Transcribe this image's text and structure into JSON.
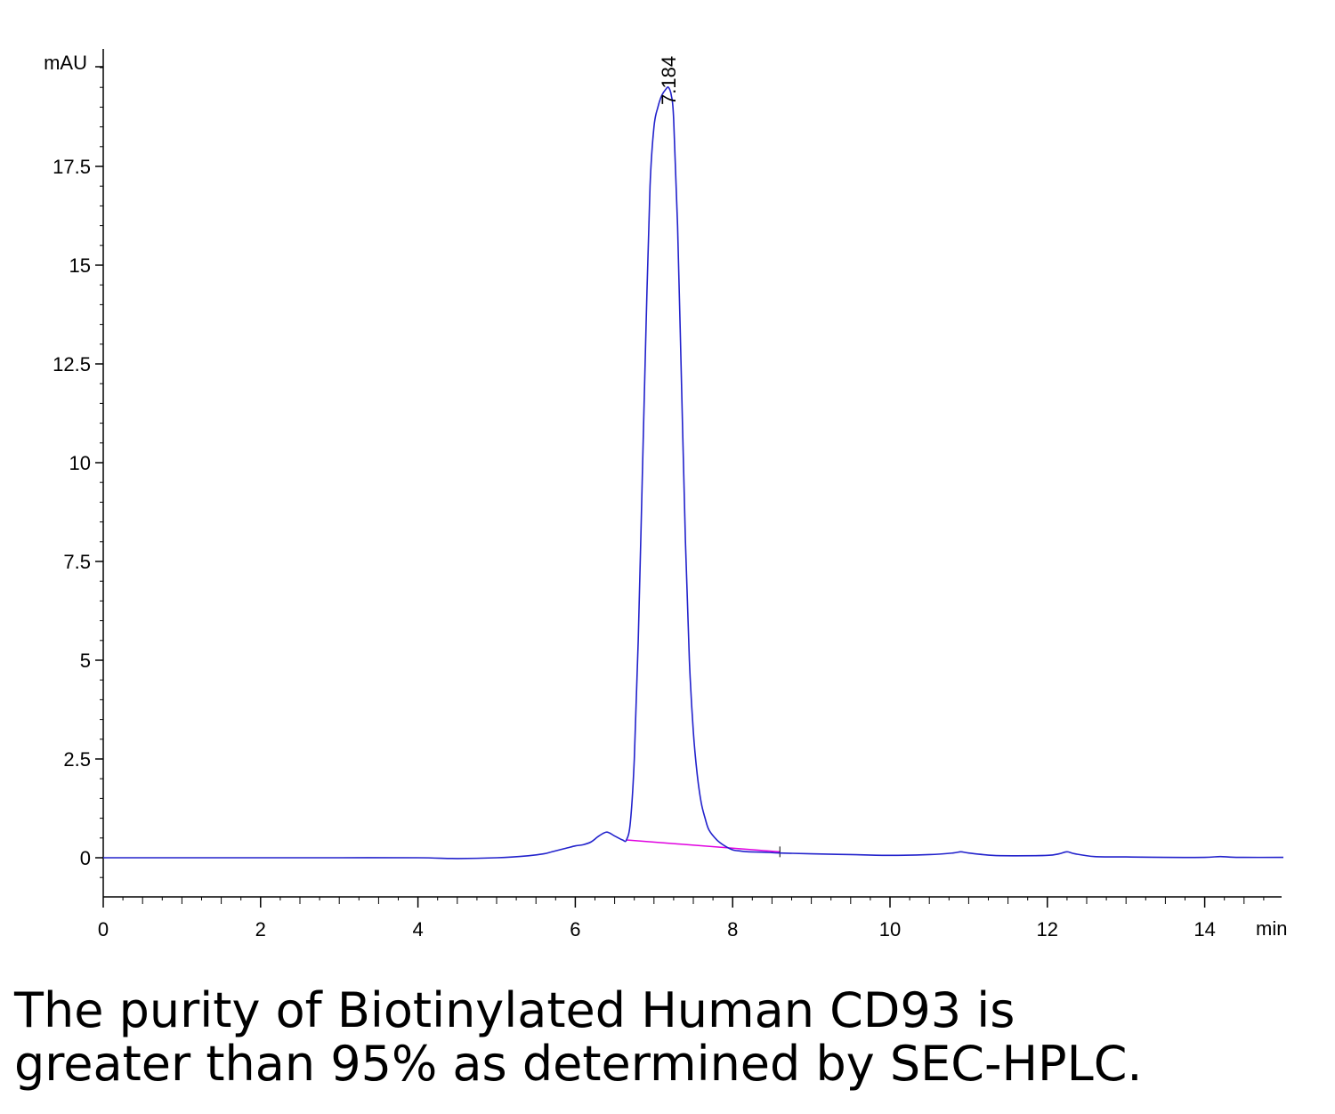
{
  "chart_data": {
    "type": "line",
    "title": "",
    "ylabel": "mAU",
    "xlabel": "min",
    "xlim": [
      0,
      15
    ],
    "ylim": [
      -2,
      20.5
    ],
    "x_ticks": [
      0,
      2,
      4,
      6,
      8,
      10,
      12,
      14
    ],
    "y_ticks": [
      0,
      2.5,
      5,
      7.5,
      10,
      12.5,
      15,
      17.5
    ],
    "x_tick_labels": [
      "0",
      "2",
      "4",
      "6",
      "8",
      "10",
      "12",
      "14"
    ],
    "y_tick_labels": [
      "0",
      "2.5",
      "5",
      "7.5",
      "10",
      "12.5",
      "15",
      "17.5"
    ],
    "peak_label": "7.184",
    "grid": false,
    "colors": {
      "signal": "#2222cc",
      "baseline": "#e000e0",
      "axis": "#000000"
    },
    "series": [
      {
        "x": [
          0,
          1,
          2,
          3,
          4,
          4.5,
          5,
          5.4,
          5.6,
          5.7,
          5.8,
          5.9,
          6.0,
          6.1,
          6.2,
          6.3,
          6.4,
          6.5,
          6.6,
          6.65,
          6.7,
          6.75,
          6.8,
          6.85,
          6.9,
          6.95,
          7.0,
          7.05,
          7.1,
          7.15,
          7.184,
          7.22,
          7.25,
          7.3,
          7.35,
          7.4,
          7.45,
          7.5,
          7.55,
          7.6,
          7.65,
          7.7,
          7.8,
          7.9,
          8.0,
          8.1,
          8.2,
          8.4,
          8.6,
          9.0,
          9.5,
          10.0,
          10.5,
          10.8,
          10.9,
          11.0,
          11.3,
          11.6,
          12.0,
          12.15,
          12.25,
          12.35,
          12.6,
          13.0,
          13.5,
          14.0,
          14.2,
          14.4,
          15.0
        ],
        "y": [
          0.0,
          0.0,
          0.0,
          0.0,
          0.0,
          -0.02,
          0.0,
          0.05,
          0.1,
          0.15,
          0.2,
          0.25,
          0.3,
          0.33,
          0.4,
          0.55,
          0.65,
          0.55,
          0.45,
          0.45,
          0.9,
          2.5,
          5.5,
          9.5,
          13.5,
          17.0,
          18.5,
          19.0,
          19.3,
          19.45,
          19.5,
          19.3,
          18.7,
          16.0,
          12.0,
          8.0,
          5.0,
          3.2,
          2.1,
          1.4,
          1.0,
          0.7,
          0.45,
          0.3,
          0.2,
          0.17,
          0.15,
          0.14,
          0.12,
          0.1,
          0.08,
          0.06,
          0.08,
          0.12,
          0.15,
          0.12,
          0.06,
          0.05,
          0.06,
          0.1,
          0.15,
          0.1,
          0.03,
          0.02,
          0.01,
          0.01,
          0.03,
          0.01,
          0.01
        ]
      }
    ],
    "baseline": {
      "x": [
        6.65,
        8.6
      ],
      "y": [
        0.45,
        0.15
      ]
    }
  },
  "caption": {
    "line1": "The purity of Biotinylated Human CD93 is",
    "line2": "greater than 95% as determined by SEC-HPLC."
  }
}
